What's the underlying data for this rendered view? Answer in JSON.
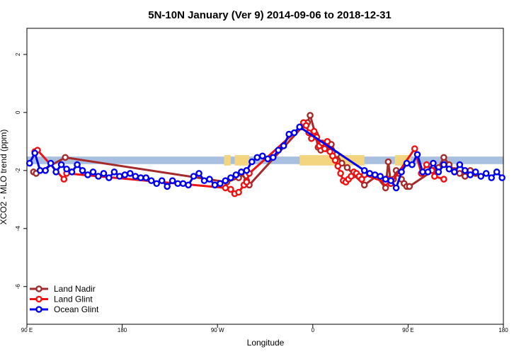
{
  "chart_data": {
    "type": "line",
    "title": "5N-10N January (Ver 9)   2014-09-06 to 2018-12-31",
    "xlabel": "Longitude",
    "ylabel": "XCO2 - MLO trend (ppm)",
    "xlim": [
      0,
      360
    ],
    "ylim": [
      -7.3,
      2.9
    ],
    "x_ticks": [
      {
        "value": 0,
        "label": "90 E"
      },
      {
        "value": 72,
        "label": "180"
      },
      {
        "value": 144,
        "label": "90 W"
      },
      {
        "value": 216,
        "label": "0"
      },
      {
        "value": 288,
        "label": "90 E"
      },
      {
        "value": 360,
        "label": "180"
      }
    ],
    "y_ticks": [
      2,
      0,
      -2,
      -4,
      -6
    ],
    "band": {
      "y_from": -1.52,
      "y_to": -1.78,
      "color": "#a8bfe0"
    },
    "land_color": "#f2d57e",
    "land_segments": [
      [
        149,
        154
      ],
      [
        157,
        168
      ],
      [
        206,
        255
      ],
      [
        278,
        290
      ]
    ],
    "legend": {
      "placement": "bottom-left"
    },
    "series": [
      {
        "name": "Land Nadir",
        "color": "#a52a2a",
        "x": [
          5,
          7,
          29,
          151,
          160,
          162,
          166,
          168,
          210,
          212,
          214,
          218,
          220,
          222,
          226,
          230,
          234,
          238,
          242,
          247,
          255,
          264,
          271,
          273,
          275,
          277,
          279,
          281,
          283,
          285,
          287,
          289,
          307,
          311,
          315,
          319,
          323,
          327,
          331,
          335,
          339
        ],
        "y": [
          -2.05,
          -2.1,
          -1.55,
          -2.4,
          -2.25,
          -2.1,
          -2.35,
          -2.5,
          -0.4,
          -0.35,
          -0.1,
          -0.75,
          -1.2,
          -1.3,
          -1.25,
          -1.1,
          -1.45,
          -1.75,
          -1.9,
          -2.15,
          -2.5,
          -2.2,
          -2.6,
          -1.7,
          -2.45,
          -2.3,
          -2.0,
          -2.1,
          -2.3,
          -2.45,
          -2.55,
          -2.55,
          -2.0,
          -1.9,
          -1.55,
          -1.8,
          -2.0,
          -2.1,
          -2.2,
          -2.0,
          -2.1
        ]
      },
      {
        "name": "Land Glint",
        "color": "#ee1111",
        "x": [
          6,
          8,
          28,
          30,
          150,
          154,
          157,
          160,
          164,
          166,
          168,
          207,
          209,
          211,
          213,
          215,
          217,
          219,
          221,
          223,
          225,
          227,
          229,
          231,
          233,
          235,
          237,
          239,
          241,
          243,
          245,
          247,
          249,
          251,
          253,
          255,
          271,
          273,
          275,
          293,
          298,
          302,
          306,
          308,
          315
        ],
        "y": [
          -1.35,
          -1.3,
          -2.3,
          -2.1,
          -2.6,
          -2.65,
          -2.8,
          -2.75,
          -2.5,
          -2.4,
          -2.1,
          -0.5,
          -0.35,
          -0.45,
          -0.7,
          -0.9,
          -0.65,
          -0.85,
          -1.15,
          -1.05,
          -1.25,
          -1.0,
          -1.35,
          -1.5,
          -1.65,
          -1.85,
          -2.1,
          -2.35,
          -2.4,
          -2.3,
          -2.2,
          -2.05,
          -2.1,
          -2.2,
          -2.3,
          -2.15,
          -2.4,
          -2.3,
          -2.45,
          -1.25,
          -2.1,
          -1.8,
          -2.0,
          -2.2,
          -2.3
        ]
      },
      {
        "name": "Ocean Glint",
        "color": "#0000ee",
        "x": [
          2,
          6,
          10,
          14,
          18,
          22,
          26,
          30,
          34,
          38,
          42,
          46,
          50,
          54,
          58,
          62,
          66,
          70,
          74,
          78,
          82,
          86,
          90,
          94,
          98,
          102,
          106,
          110,
          114,
          118,
          122,
          126,
          130,
          134,
          138,
          142,
          146,
          150,
          154,
          158,
          162,
          166,
          170,
          174,
          178,
          182,
          186,
          190,
          194,
          198,
          202,
          206,
          255,
          259,
          263,
          267,
          271,
          275,
          279,
          283,
          287,
          291,
          295,
          299,
          303,
          307,
          311,
          315,
          319,
          323,
          327,
          331,
          335,
          339,
          343,
          347,
          351,
          355,
          359
        ],
        "y": [
          -1.75,
          -1.4,
          -2.0,
          -2.0,
          -1.75,
          -2.05,
          -1.8,
          -1.95,
          -2.05,
          -1.8,
          -2.0,
          -2.15,
          -2.05,
          -2.2,
          -2.1,
          -2.25,
          -2.05,
          -2.2,
          -2.15,
          -2.1,
          -2.2,
          -2.25,
          -2.25,
          -2.35,
          -2.45,
          -2.35,
          -2.55,
          -2.35,
          -2.45,
          -2.45,
          -2.5,
          -2.2,
          -2.1,
          -2.35,
          -2.3,
          -2.5,
          -2.45,
          -2.35,
          -2.25,
          -2.15,
          -2.05,
          -2.0,
          -1.7,
          -1.55,
          -1.5,
          -1.6,
          -1.55,
          -1.3,
          -1.15,
          -0.75,
          -0.7,
          -0.5,
          -2.0,
          -2.1,
          -2.15,
          -2.2,
          -2.3,
          -2.35,
          -2.6,
          -2.05,
          -1.75,
          -1.8,
          -1.45,
          -2.05,
          -2.05,
          -1.75,
          -2.05,
          -1.8,
          -1.95,
          -2.05,
          -1.8,
          -2.0,
          -2.15,
          -2.05,
          -2.2,
          -2.1,
          -2.25,
          -2.05,
          -2.25
        ]
      }
    ]
  }
}
